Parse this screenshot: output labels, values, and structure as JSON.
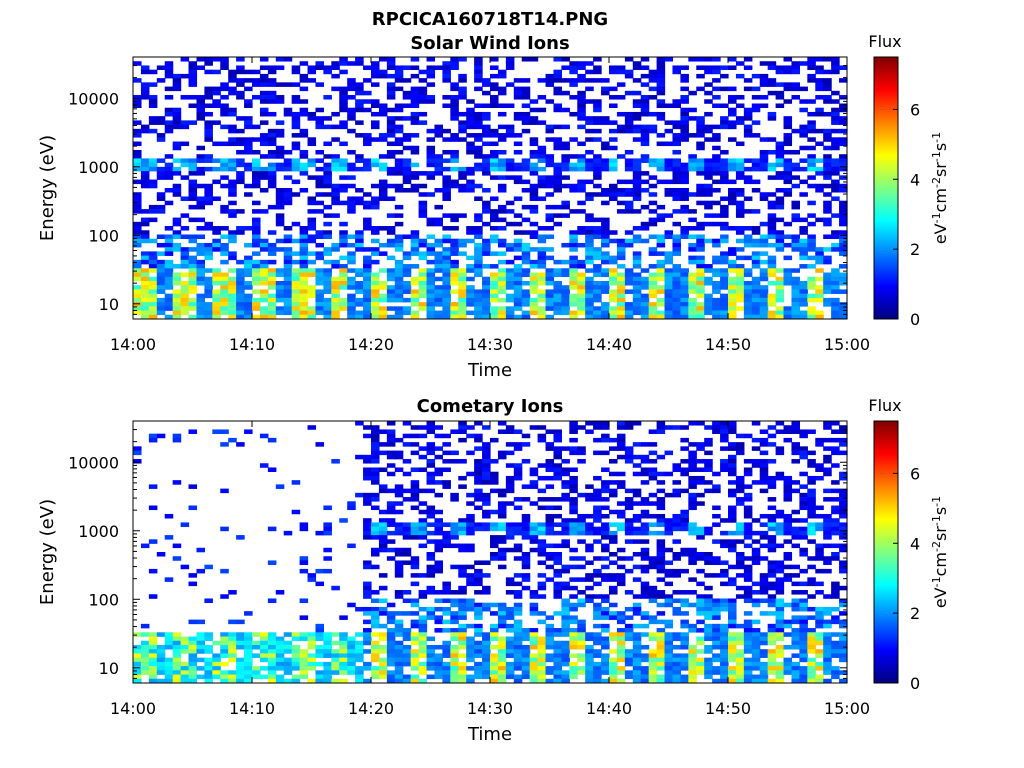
{
  "figure": {
    "title": "RPCICA160718T14.PNG"
  },
  "colormap": {
    "name": "jet",
    "stops": [
      "#00007f",
      "#0000ff",
      "#0080ff",
      "#00ffff",
      "#80ff80",
      "#ffff00",
      "#ff8000",
      "#ff0000",
      "#7f0000"
    ]
  },
  "chart_data": [
    {
      "type": "heatmap",
      "title": "Solar Wind Ions",
      "xlabel": "Time",
      "ylabel": "Energy (eV)",
      "yscale": "log",
      "xlim": [
        "14:00",
        "15:00"
      ],
      "ylim": [
        6,
        40000
      ],
      "x_ticks": [
        "14:00",
        "14:10",
        "14:20",
        "14:30",
        "14:40",
        "14:50",
        "15:00"
      ],
      "y_ticks": [
        "10",
        "100",
        "1000",
        "10000"
      ],
      "colorbar": {
        "title": "Flux",
        "label_parts": [
          "eV",
          "-1",
          "cm",
          "-2",
          "sr",
          "-1",
          "s",
          "-1"
        ],
        "range": [
          0,
          7.5
        ],
        "ticks": [
          "0",
          "2",
          "4",
          "6"
        ]
      },
      "background_level": 0.9,
      "lowE_peak": 4.5,
      "band_1000eV": 2.5,
      "early_gap_minutes": 0,
      "early_lowE_level": 2.2
    },
    {
      "type": "heatmap",
      "title": "Cometary Ions",
      "xlabel": "Time",
      "ylabel": "Energy (eV)",
      "yscale": "log",
      "xlim": [
        "14:00",
        "15:00"
      ],
      "ylim": [
        6,
        40000
      ],
      "x_ticks": [
        "14:00",
        "14:10",
        "14:20",
        "14:30",
        "14:40",
        "14:50",
        "15:00"
      ],
      "y_ticks": [
        "10",
        "100",
        "1000",
        "10000"
      ],
      "colorbar": {
        "title": "Flux",
        "label_parts": [
          "eV",
          "-1",
          "cm",
          "-2",
          "sr",
          "-1",
          "s",
          "-1"
        ],
        "range": [
          0,
          7.5
        ],
        "ticks": [
          "0",
          "2",
          "4",
          "6"
        ]
      },
      "background_level": 0.9,
      "lowE_peak": 4.5,
      "band_1000eV": 2.5,
      "early_gap_minutes": 19,
      "early_lowE_level": 4.5
    }
  ]
}
